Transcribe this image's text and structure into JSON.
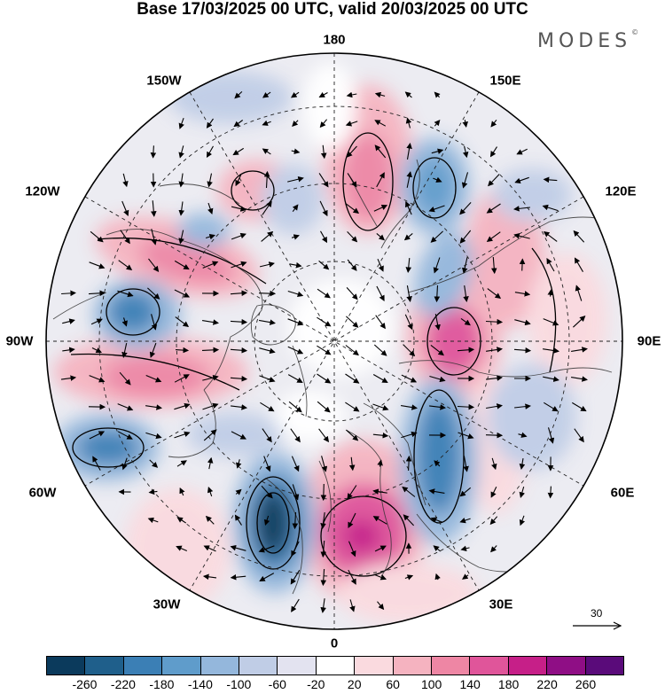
{
  "title": "Base 17/03/2025 00 UTC, valid 20/03/2025 00 UTC",
  "brand": "MODES",
  "brand_mark": "©",
  "longitude_labels": {
    "top": "180",
    "top_left": "150W",
    "top_right": "150E",
    "upper_left": "120W",
    "upper_right": "120E",
    "left": "90W",
    "right": "90E",
    "lower_left": "60W",
    "lower_right": "60E",
    "bottom_left": "30W",
    "bottom_right": "30E",
    "bottom": "0"
  },
  "reference_vector": {
    "value": "30"
  },
  "colorbar": {
    "colors": [
      "#0b3a5c",
      "#1f5f8b",
      "#3b7fb5",
      "#5f9ccb",
      "#94b7dc",
      "#c0cde6",
      "#e3e3f0",
      "#ffffff",
      "#fadadf",
      "#f5b3c0",
      "#ee86a4",
      "#e0559a",
      "#c61f88",
      "#8f0e85",
      "#5a0b7a"
    ],
    "tick_labels": [
      "-260",
      "-220",
      "-180",
      "-140",
      "-100",
      "-60",
      "-20",
      "20",
      "60",
      "100",
      "140",
      "180",
      "220",
      "260"
    ]
  },
  "map_features": {
    "projection": "north-polar-stereographic",
    "fields": "filled anomaly contours with wind arrows",
    "highs": [
      {
        "name": "high-north-atlantic",
        "anomaly": 200
      },
      {
        "name": "high-siberia-east",
        "anomaly": 160
      },
      {
        "name": "high-bering",
        "anomaly": 140
      },
      {
        "name": "high-canada",
        "anomaly": 130
      },
      {
        "name": "high-alaska-west",
        "anomaly": 100
      },
      {
        "name": "high-ural",
        "anomaly": 80
      }
    ],
    "lows": [
      {
        "name": "low-mid-atlantic",
        "anomaly": -260
      },
      {
        "name": "low-scandinavia",
        "anomaly": -180
      },
      {
        "name": "low-western-atlantic",
        "anomaly": -140
      },
      {
        "name": "low-central-canada",
        "anomaly": -150
      },
      {
        "name": "low-siberia",
        "anomaly": -120
      },
      {
        "name": "low-east-siberia",
        "anomaly": -100
      }
    ]
  }
}
